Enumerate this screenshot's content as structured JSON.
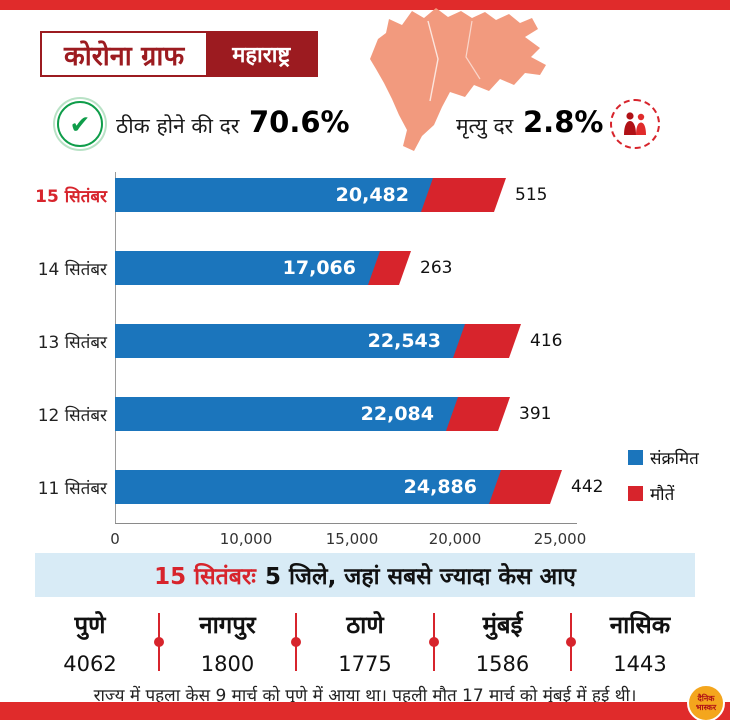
{
  "header": {
    "badge": "कोरोना ग्राफ",
    "region": "महाराष्ट्र"
  },
  "stats": {
    "recovery_label": "ठीक होने की दर",
    "recovery_value": "70.6%",
    "mortality_label": "मृत्यु दर",
    "mortality_value": "2.8%"
  },
  "icons": {
    "recovery_check": "✔",
    "mortality": "two-figures-icon",
    "map": "maharashtra-map"
  },
  "chart_data": {
    "type": "bar",
    "orientation": "horizontal",
    "categories": [
      "15 सितंबर",
      "14 सितंबर",
      "13 सितंबर",
      "12 सितंबर",
      "11 सितंबर"
    ],
    "series": [
      {
        "name": "संक्रमित",
        "color": "#1b75bc",
        "values": [
          20482,
          17066,
          22543,
          22084,
          24886
        ]
      },
      {
        "name": "मौतें",
        "color": "#d7242c",
        "values": [
          515,
          263,
          416,
          391,
          442
        ]
      }
    ],
    "value_labels": {
      "infected": [
        "20,482",
        "17,066",
        "22,543",
        "22,084",
        "24,886"
      ],
      "deaths": [
        "515",
        "263",
        "416",
        "391",
        "442"
      ]
    },
    "x_ticks": [
      "0",
      "10,000",
      "15,000",
      "20,000",
      "25,000"
    ],
    "xlim": [
      0,
      25000
    ],
    "grid": false,
    "legend_position": "right",
    "layout_note": "death bars drawn at enlarged scale in source graphic"
  },
  "highlight": {
    "prefix": "15 सितंबरः",
    "text": "5 जिले, जहां सबसे ज्यादा केस आए"
  },
  "districts": [
    {
      "name": "पुणे",
      "value": "4062"
    },
    {
      "name": "नागपुर",
      "value": "1800"
    },
    {
      "name": "ठाणे",
      "value": "1775"
    },
    {
      "name": "मुंबई",
      "value": "1586"
    },
    {
      "name": "नासिक",
      "value": "1443"
    }
  ],
  "footnote": "राज्य में पहला केस 9 मार्च को पुणे में आया था। पहली मौत 17 मार्च को मुंबई में हुई थी।",
  "brand": {
    "line1": "दैनिक",
    "line2": "भास्कर"
  },
  "colors": {
    "red": "#e02b2b",
    "maroon": "#9c1b20",
    "blue": "#1b75bc",
    "bar-red": "#d7242c",
    "salmon": "#f29a7e",
    "banner": "#d8ebf6",
    "green": "#0f9d4a",
    "yellow": "#f4a61d"
  }
}
